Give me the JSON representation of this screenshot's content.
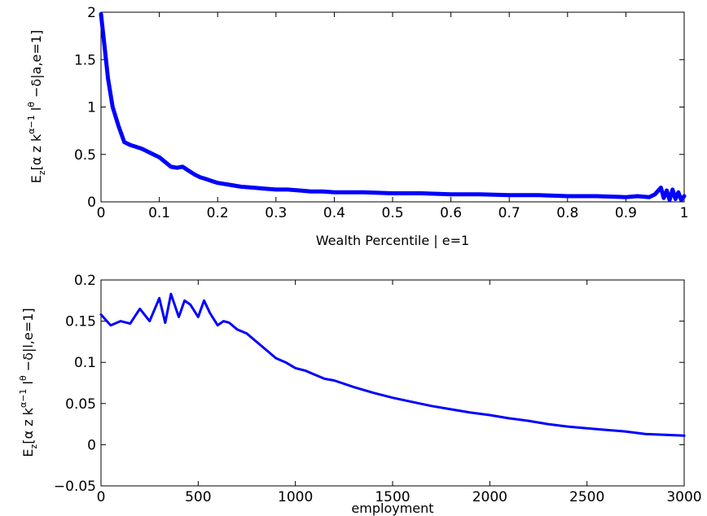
{
  "figure": {
    "background": "#ffffff",
    "line_color": "#0000ff"
  },
  "chart_data": [
    {
      "type": "line",
      "title": "",
      "xlabel": "Wealth Percentile | e=1",
      "ylabel_parts": [
        "E",
        "z",
        "[α z k",
        "α−1",
        " l",
        "θ",
        " −δ|a,e=1]"
      ],
      "xlim": [
        0,
        1
      ],
      "ylim": [
        0,
        2
      ],
      "xticks": [
        "0",
        "0.1",
        "0.2",
        "0.3",
        "0.4",
        "0.5",
        "0.6",
        "0.7",
        "0.8",
        "0.9",
        "1"
      ],
      "yticks": [
        "0",
        "0.5",
        "1",
        "1.5",
        "2"
      ],
      "grid": false,
      "series": [
        {
          "x": [
            0,
            0.005,
            0.012,
            0.02,
            0.03,
            0.04,
            0.05,
            0.06,
            0.07,
            0.08,
            0.09,
            0.1,
            0.11,
            0.12,
            0.13,
            0.14,
            0.15,
            0.16,
            0.17,
            0.18,
            0.19,
            0.2,
            0.22,
            0.24,
            0.26,
            0.28,
            0.3,
            0.32,
            0.34,
            0.36,
            0.38,
            0.4,
            0.45,
            0.5,
            0.55,
            0.6,
            0.65,
            0.7,
            0.75,
            0.8,
            0.85,
            0.9,
            0.92,
            0.94,
            0.95,
            0.96,
            0.965,
            0.97,
            0.975,
            0.98,
            0.985,
            0.99,
            0.995,
            1
          ],
          "y": [
            1.98,
            1.7,
            1.3,
            1.0,
            0.8,
            0.63,
            0.6,
            0.58,
            0.56,
            0.53,
            0.5,
            0.47,
            0.42,
            0.37,
            0.36,
            0.37,
            0.33,
            0.29,
            0.26,
            0.24,
            0.22,
            0.2,
            0.18,
            0.16,
            0.15,
            0.14,
            0.13,
            0.13,
            0.12,
            0.11,
            0.11,
            0.1,
            0.1,
            0.09,
            0.09,
            0.08,
            0.08,
            0.07,
            0.07,
            0.06,
            0.06,
            0.05,
            0.06,
            0.05,
            0.08,
            0.15,
            0.04,
            0.12,
            0.02,
            0.13,
            0.03,
            0.1,
            0.02,
            0.06
          ]
        }
      ]
    },
    {
      "type": "line",
      "title": "",
      "xlabel": "employment",
      "ylabel_parts": [
        "E",
        "z",
        "[α z k",
        "α−1",
        " l",
        "θ",
        " −δ|l,e=1]"
      ],
      "xlim": [
        0,
        3000
      ],
      "ylim": [
        -0.05,
        0.2
      ],
      "xticks": [
        "0",
        "500",
        "1000",
        "1500",
        "2000",
        "2500",
        "3000"
      ],
      "yticks": [
        "−0.05",
        "0",
        "0.05",
        "0.1",
        "0.15",
        "0.2"
      ],
      "grid": false,
      "series": [
        {
          "x": [
            0,
            50,
            100,
            150,
            200,
            250,
            300,
            330,
            360,
            400,
            430,
            460,
            500,
            530,
            560,
            600,
            630,
            660,
            700,
            750,
            800,
            850,
            900,
            950,
            1000,
            1050,
            1100,
            1150,
            1200,
            1300,
            1400,
            1500,
            1600,
            1700,
            1800,
            1900,
            2000,
            2100,
            2200,
            2300,
            2400,
            2500,
            2600,
            2700,
            2800,
            2900,
            3000
          ],
          "y": [
            0.158,
            0.145,
            0.15,
            0.147,
            0.165,
            0.15,
            0.178,
            0.148,
            0.183,
            0.155,
            0.175,
            0.17,
            0.155,
            0.175,
            0.16,
            0.145,
            0.15,
            0.148,
            0.14,
            0.135,
            0.125,
            0.115,
            0.105,
            0.1,
            0.093,
            0.09,
            0.085,
            0.08,
            0.078,
            0.07,
            0.063,
            0.057,
            0.052,
            0.047,
            0.043,
            0.039,
            0.036,
            0.032,
            0.029,
            0.025,
            0.022,
            0.02,
            0.018,
            0.016,
            0.013,
            0.012,
            0.011
          ]
        }
      ]
    }
  ]
}
